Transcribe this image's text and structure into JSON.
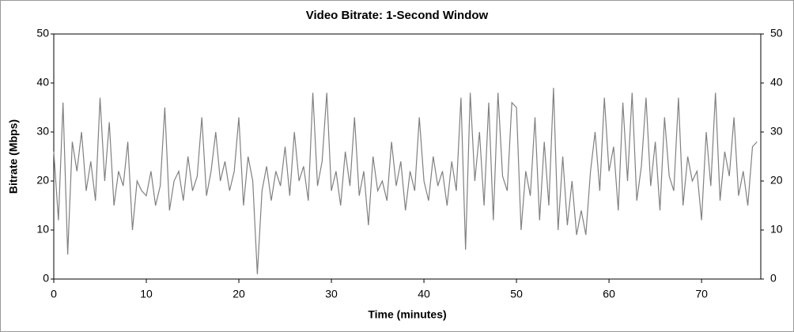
{
  "chart_data": {
    "type": "line",
    "title": "Video Bitrate: 1-Second Window",
    "x_label": "Time (minutes)",
    "y_label": "Bitrate (Mbps)",
    "x": [
      0,
      0.5,
      1,
      1.5,
      2,
      2.5,
      3,
      3.5,
      4,
      4.5,
      5,
      5.5,
      6,
      6.5,
      7,
      7.5,
      8,
      8.5,
      9,
      9.5,
      10,
      10.5,
      11,
      11.5,
      12,
      12.5,
      13,
      13.5,
      14,
      14.5,
      15,
      15.5,
      16,
      16.5,
      17,
      17.5,
      18,
      18.5,
      19,
      19.5,
      20,
      20.5,
      21,
      21.5,
      22,
      22.5,
      23,
      23.5,
      24,
      24.5,
      25,
      25.5,
      26,
      26.5,
      27,
      27.5,
      28,
      28.5,
      29,
      29.5,
      30,
      30.5,
      31,
      31.5,
      32,
      32.5,
      33,
      33.5,
      34,
      34.5,
      35,
      35.5,
      36,
      36.5,
      37,
      37.5,
      38,
      38.5,
      39,
      39.5,
      40,
      40.5,
      41,
      41.5,
      42,
      42.5,
      43,
      43.5,
      44,
      44.5,
      45,
      45.5,
      46,
      46.5,
      47,
      47.5,
      48,
      48.5,
      49,
      49.5,
      50,
      50.5,
      51,
      51.5,
      52,
      52.5,
      53,
      53.5,
      54,
      54.5,
      55,
      55.5,
      56,
      56.5,
      57,
      57.5,
      58,
      58.5,
      59,
      59.5,
      60,
      60.5,
      61,
      61.5,
      62,
      62.5,
      63,
      63.5,
      64,
      64.5,
      65,
      65.5,
      66,
      66.5,
      67,
      67.5,
      68,
      68.5,
      69,
      69.5,
      70,
      70.5,
      71,
      71.5,
      72,
      72.5,
      73,
      73.5,
      74,
      74.5,
      75,
      75.5,
      76
    ],
    "series": [
      {
        "name": "Bitrate",
        "color": "#808080",
        "values": [
          26,
          12,
          36,
          5,
          28,
          22,
          30,
          18,
          24,
          16,
          37,
          20,
          32,
          15,
          22,
          19,
          28,
          10,
          20,
          18,
          17,
          22,
          15,
          19,
          35,
          14,
          20,
          22,
          16,
          25,
          18,
          21,
          33,
          17,
          22,
          30,
          20,
          24,
          18,
          22,
          33,
          15,
          25,
          20,
          1,
          18,
          23,
          16,
          22,
          19,
          27,
          17,
          30,
          20,
          23,
          16,
          38,
          19,
          24,
          38,
          18,
          22,
          15,
          26,
          19,
          33,
          17,
          22,
          11,
          25,
          18,
          20,
          16,
          28,
          19,
          24,
          14,
          22,
          18,
          33,
          20,
          16,
          25,
          19,
          22,
          15,
          24,
          18,
          37,
          6,
          38,
          20,
          30,
          15,
          36,
          12,
          38,
          21,
          18,
          36,
          35,
          10,
          22,
          17,
          33,
          12,
          28,
          15,
          39,
          10,
          25,
          11,
          20,
          9,
          14,
          9,
          22,
          30,
          18,
          37,
          22,
          27,
          14,
          36,
          20,
          38,
          16,
          23,
          37,
          19,
          28,
          14,
          33,
          21,
          18,
          37,
          15,
          25,
          20,
          22,
          12,
          30,
          19,
          38,
          16,
          26,
          21,
          33,
          17,
          22,
          15,
          27,
          28
        ]
      }
    ],
    "xlim": [
      0,
      76.4
    ],
    "xticks": [
      0,
      10,
      20,
      30,
      40,
      50,
      60,
      70
    ],
    "ylim": [
      0,
      50
    ],
    "yticks": [
      0,
      10,
      20,
      30,
      40,
      50
    ],
    "y2lim": [
      0,
      50
    ],
    "y2ticks": [
      0,
      10,
      20,
      30,
      40,
      50
    ]
  }
}
